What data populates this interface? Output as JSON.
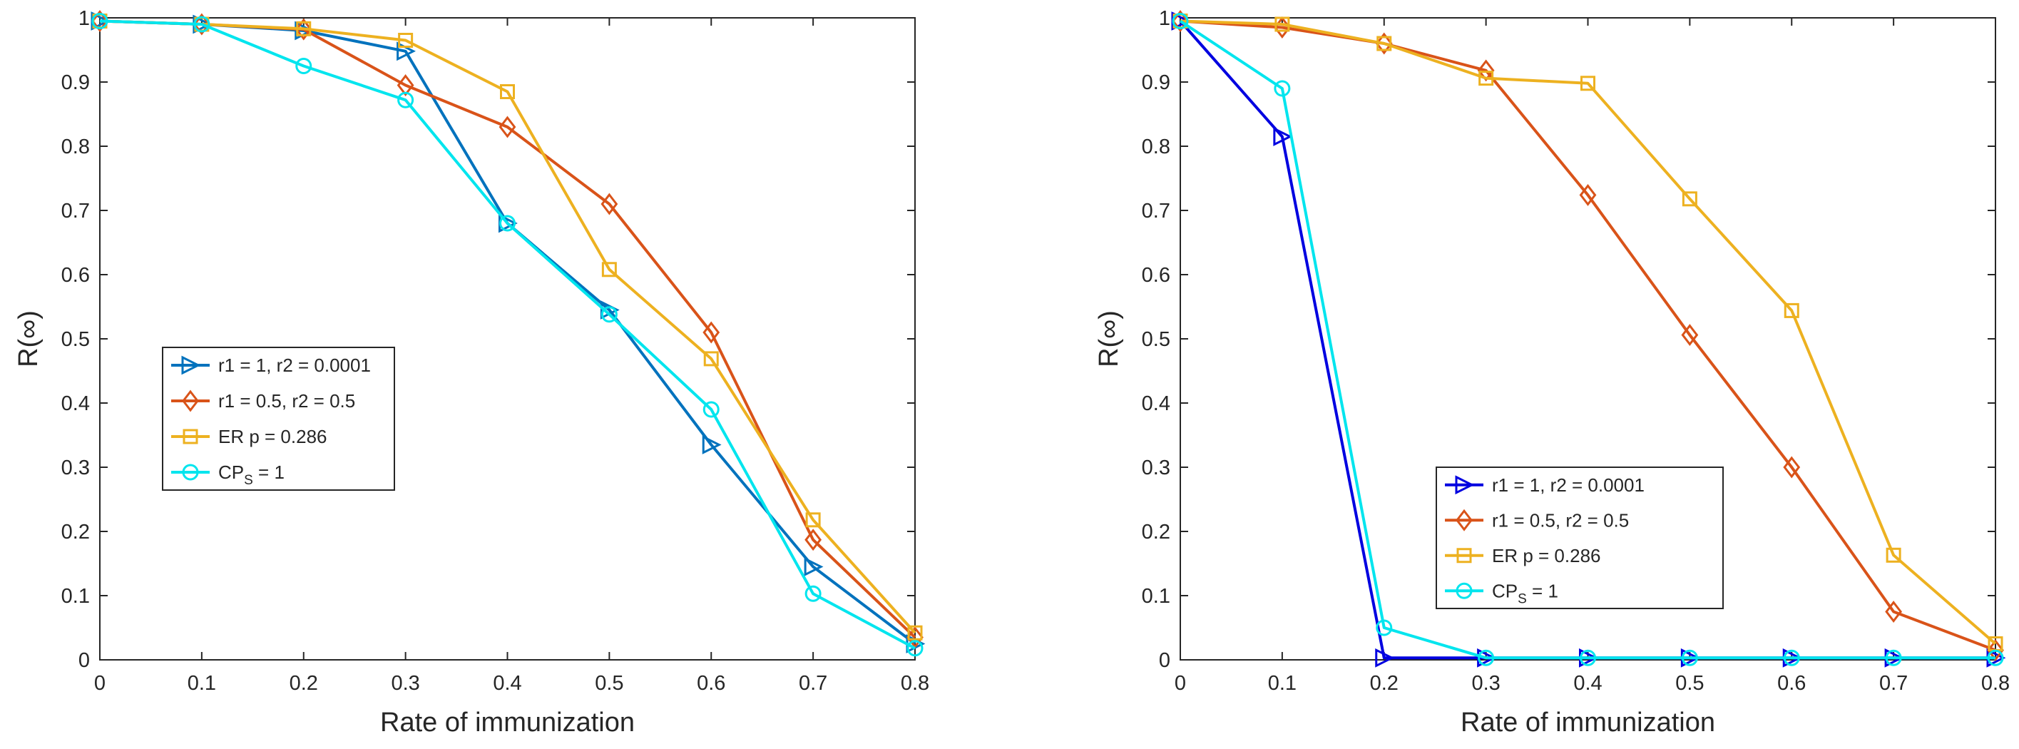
{
  "chart_data": [
    {
      "type": "line",
      "title": "",
      "xlabel": "Rate of immunization",
      "ylabel": "R(∞)",
      "xlim": [
        0,
        0.8
      ],
      "ylim": [
        0,
        1
      ],
      "xticks": [
        "0",
        "0.1",
        "0.2",
        "0.3",
        "0.4",
        "0.5",
        "0.6",
        "0.7",
        "0.8"
      ],
      "yticks": [
        "0",
        "0.1",
        "0.2",
        "0.3",
        "0.4",
        "0.5",
        "0.6",
        "0.7",
        "0.8",
        "0.9",
        "1"
      ],
      "grid": false,
      "legend": {
        "position": "center-left",
        "entries": [
          "r1 = 1, r2 = 0.0001",
          "r1 = 0.5, r2 = 0.5",
          "ER p = 0.286",
          "CP_S = 1"
        ]
      },
      "x": [
        0,
        0.1,
        0.2,
        0.3,
        0.4,
        0.5,
        0.6,
        0.7,
        0.8
      ],
      "series": [
        {
          "name": "r1 = 1, r2 = 0.0001",
          "label_main": "r1 = 1, r2 = 0.0001",
          "color": "#0072BD",
          "marker": "triangle-right",
          "values": [
            0.995,
            0.99,
            0.98,
            0.948,
            0.68,
            0.545,
            0.335,
            0.145,
            0.025
          ]
        },
        {
          "name": "r1 = 0.5, r2 = 0.5",
          "label_main": "r1 = 0.5, r2 = 0.5",
          "color": "#D95319",
          "marker": "diamond",
          "values": [
            0.995,
            0.99,
            0.982,
            0.895,
            0.83,
            0.71,
            0.51,
            0.187,
            0.035
          ]
        },
        {
          "name": "ER p = 0.286",
          "label_main": "ER p = 0.286",
          "color": "#EDB120",
          "marker": "square",
          "values": [
            0.995,
            0.99,
            0.983,
            0.965,
            0.885,
            0.608,
            0.469,
            0.218,
            0.042
          ]
        },
        {
          "name": "CP_S = 1",
          "label_main": "CP",
          "label_sub": "S",
          "label_tail": " = 1",
          "color": "#00E5EE",
          "marker": "circle",
          "values": [
            0.995,
            0.99,
            0.925,
            0.872,
            0.68,
            0.538,
            0.39,
            0.103,
            0.018
          ]
        }
      ]
    },
    {
      "type": "line",
      "title": "",
      "xlabel": "Rate of immunization",
      "ylabel": "R(∞)",
      "xlim": [
        0,
        0.8
      ],
      "ylim": [
        0,
        1
      ],
      "xticks": [
        "0",
        "0.1",
        "0.2",
        "0.3",
        "0.4",
        "0.5",
        "0.6",
        "0.7",
        "0.8"
      ],
      "yticks": [
        "0",
        "0.1",
        "0.2",
        "0.3",
        "0.4",
        "0.5",
        "0.6",
        "0.7",
        "0.8",
        "0.9",
        "1"
      ],
      "grid": false,
      "legend": {
        "position": "bottom-center",
        "entries": [
          "r1 = 1, r2 = 0.0001",
          "r1 = 0.5, r2 = 0.5",
          "ER p = 0.286",
          "CP_S = 1"
        ]
      },
      "x": [
        0,
        0.1,
        0.2,
        0.3,
        0.4,
        0.5,
        0.6,
        0.7,
        0.8
      ],
      "series": [
        {
          "name": "r1 = 1, r2 = 0.0001",
          "label_main": "r1 = 1, r2 = 0.0001",
          "color": "#0000E0",
          "marker": "triangle-right",
          "values": [
            0.995,
            0.815,
            0.003,
            0.003,
            0.003,
            0.003,
            0.003,
            0.003,
            0.003
          ]
        },
        {
          "name": "r1 = 0.5, r2 = 0.5",
          "label_main": "r1 = 0.5, r2 = 0.5",
          "color": "#D95319",
          "marker": "diamond",
          "values": [
            0.995,
            0.985,
            0.96,
            0.918,
            0.724,
            0.506,
            0.3,
            0.075,
            0.015
          ]
        },
        {
          "name": "ER p = 0.286",
          "label_main": "ER p = 0.286",
          "color": "#EDB120",
          "marker": "square",
          "values": [
            0.995,
            0.99,
            0.96,
            0.906,
            0.898,
            0.718,
            0.544,
            0.163,
            0.025
          ]
        },
        {
          "name": "CP_S = 1",
          "label_main": "CP",
          "label_sub": "S",
          "label_tail": " = 1",
          "color": "#00E5EE",
          "marker": "circle",
          "values": [
            0.995,
            0.89,
            0.05,
            0.003,
            0.003,
            0.003,
            0.003,
            0.003,
            0.003
          ]
        }
      ]
    }
  ]
}
